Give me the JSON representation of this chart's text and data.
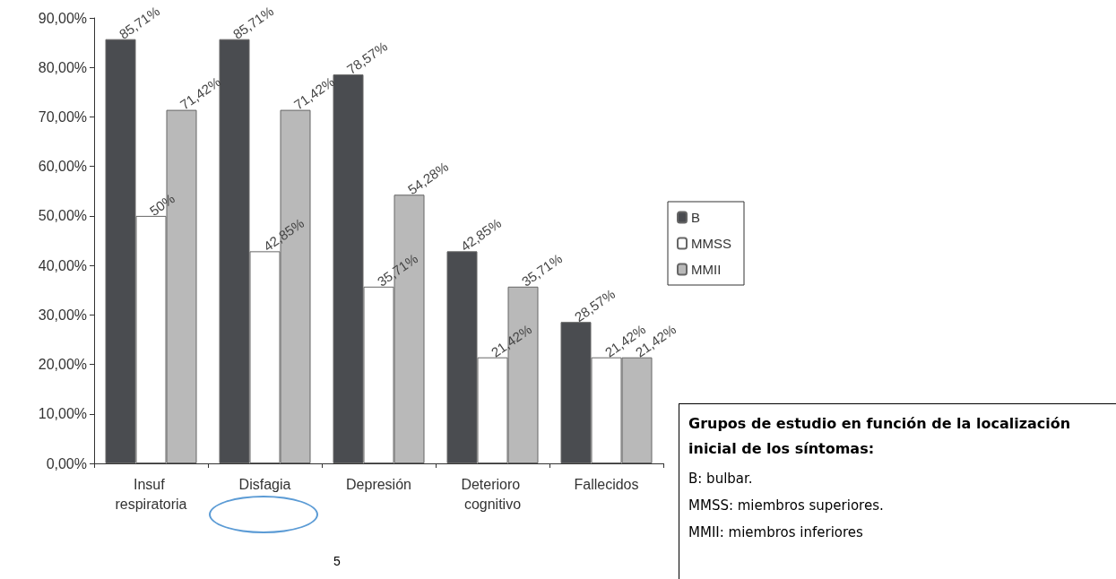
{
  "chart_data": {
    "type": "bar",
    "categories": [
      "Insuf respiratoria",
      "Disfagia",
      "Depresión",
      "Deterioro cognitivo",
      "Fallecidos"
    ],
    "series": [
      {
        "name": "B",
        "color": "#4a4c50",
        "values": [
          85.71,
          85.71,
          78.57,
          42.85,
          28.57
        ],
        "value_labels": [
          "85,71%",
          "85,71%",
          "78,57%",
          "42,85%",
          "28,57%"
        ]
      },
      {
        "name": "MMSS",
        "color": "#ffffff",
        "values": [
          50,
          42.85,
          35.71,
          21.42,
          21.42
        ],
        "value_labels": [
          "50%",
          "42,85%",
          "35,71%",
          "21,42%",
          "21,42%"
        ]
      },
      {
        "name": "MMII",
        "color": "#b9b9b9",
        "values": [
          71.42,
          71.42,
          54.28,
          35.71,
          21.42
        ],
        "value_labels": [
          "71,42%",
          "71,42%",
          "54,28%",
          "35,71%",
          "21,42%"
        ]
      }
    ],
    "ylim": [
      0,
      90
    ],
    "yticks": [
      {
        "value": 0,
        "label": "0,00%"
      },
      {
        "value": 10,
        "label": "10,00%"
      },
      {
        "value": 20,
        "label": "20,00%"
      },
      {
        "value": 30,
        "label": "30,00%"
      },
      {
        "value": 40,
        "label": "40,00%"
      },
      {
        "value": 50,
        "label": "50,00%"
      },
      {
        "value": 60,
        "label": "60,00%"
      },
      {
        "value": 70,
        "label": "70,00%"
      },
      {
        "value": 80,
        "label": "80,00%"
      },
      {
        "value": 90,
        "label": "90,00%"
      }
    ],
    "grid": false,
    "legend": "right",
    "annotations": [
      "Grupos de estudio en función de la localización inicial de los síntomas:",
      "B: bulbar.",
      "MMSS: miembros superiores.",
      "MMII: miembros inferiores",
      "5"
    ]
  }
}
